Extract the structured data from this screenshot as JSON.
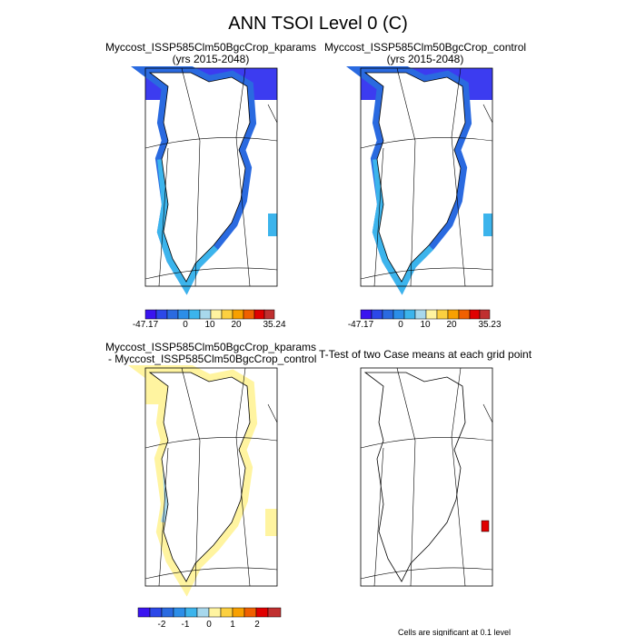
{
  "title": "ANN TSOI Level 0 (C)",
  "panels": [
    {
      "title": [
        "Myccost_ISSP585Clm50BgcCrop_kparams",
        "(yrs 2015-2048)"
      ],
      "colorbar": [
        "-47.17",
        "0",
        "10",
        "20",
        "35.24"
      ]
    },
    {
      "title": [
        "Myccost_ISSP585Clm50BgcCrop_control",
        "(yrs 2015-2048)"
      ],
      "colorbar": [
        "-47.17",
        "0",
        "10",
        "20",
        "35.23"
      ]
    },
    {
      "title": [
        "Myccost_ISSP585Clm50BgcCrop_kparams",
        " - Myccost_ISSP585Clm50BgcCrop_control"
      ],
      "colorbar": [
        "-2",
        "-1",
        "0",
        "1",
        "2"
      ]
    },
    {
      "title": [
        "T-Test of two Case means at each grid point"
      ]
    }
  ],
  "note": "Cells are significant at 0.1 level"
}
